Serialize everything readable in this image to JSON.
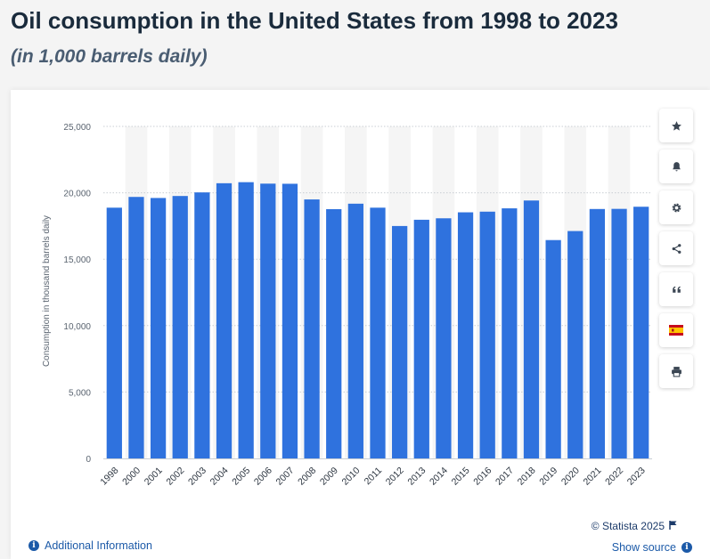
{
  "header": {
    "title": "Oil consumption in the United States from 1998 to 2023",
    "subtitle": "(in 1,000 barrels daily)"
  },
  "chart_data": {
    "type": "bar",
    "categories": [
      "1998",
      "2000",
      "2001",
      "2002",
      "2003",
      "2004",
      "2005",
      "2006",
      "2007",
      "2008",
      "2009",
      "2010",
      "2011",
      "2012",
      "2013",
      "2014",
      "2015",
      "2016",
      "2017",
      "2018",
      "2019",
      "2020",
      "2021",
      "2022",
      "2023"
    ],
    "values": [
      18880,
      19690,
      19610,
      19760,
      20030,
      20720,
      20800,
      20690,
      20680,
      19500,
      18770,
      19180,
      18880,
      17500,
      17970,
      18080,
      18530,
      18580,
      18830,
      19420,
      16440,
      17120,
      18780,
      18790,
      18950
    ],
    "ylabel": "Consumption in thousand barrels daily",
    "ylim": [
      0,
      25000
    ],
    "yticks": [
      "0",
      "5,000",
      "10,000",
      "15,000",
      "20,000",
      "25,000"
    ],
    "grid": true,
    "bar_color": "#2f72de"
  },
  "toolbar": {
    "icons": [
      "star-icon",
      "bell-icon",
      "gear-icon",
      "share-icon",
      "quote-icon",
      "spain-flag-icon",
      "print-icon"
    ]
  },
  "footer": {
    "credit": "© Statista 2025",
    "show_source": "Show source",
    "additional_info": "Additional Information"
  },
  "colors": {
    "title": "#1a2b3c",
    "subtitle": "#4a5d72",
    "link": "#1c5aa8",
    "band": "#f5f5f5"
  }
}
